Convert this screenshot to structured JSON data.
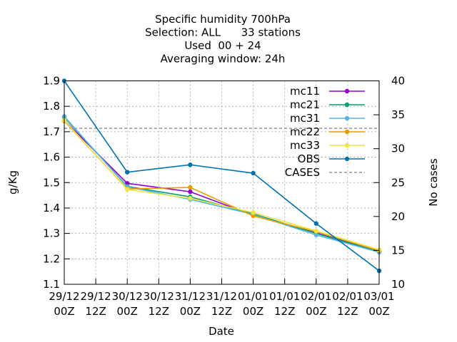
{
  "chart_data": {
    "type": "line",
    "title_lines": [
      "Specific humidity 700hPa",
      "Selection: ALL      33 stations",
      "Used  00 + 24",
      "Averaging window: 24h"
    ],
    "xlabel": "Date",
    "ylabel": "g/Kg",
    "y2label": "No cases",
    "x_ticks": [
      {
        "top": "29/12",
        "bottom": "00Z"
      },
      {
        "top": "29/12",
        "bottom": "12Z"
      },
      {
        "top": "30/12",
        "bottom": "00Z"
      },
      {
        "top": "30/12",
        "bottom": "12Z"
      },
      {
        "top": "31/12",
        "bottom": "00Z"
      },
      {
        "top": "31/12",
        "bottom": "12Z"
      },
      {
        "top": "01/01",
        "bottom": "00Z"
      },
      {
        "top": "01/01",
        "bottom": "12Z"
      },
      {
        "top": "02/01",
        "bottom": "00Z"
      },
      {
        "top": "02/01",
        "bottom": "12Z"
      },
      {
        "top": "03/01",
        "bottom": "00Z"
      }
    ],
    "y_ticks": [
      "1.1",
      "1.2",
      "1.3",
      "1.4",
      "1.5",
      "1.6",
      "1.7",
      "1.8",
      "1.9"
    ],
    "y2_ticks": [
      "10",
      "15",
      "20",
      "25",
      "30",
      "35",
      "40"
    ],
    "ylim": [
      1.1,
      1.9
    ],
    "y2lim": [
      10,
      40
    ],
    "x_points": [
      0,
      2,
      4,
      6,
      8,
      10
    ],
    "grid": true,
    "legend_position": "top-right",
    "series": [
      {
        "name": "mc11",
        "color": "#9400d3",
        "marker": "filled-circle",
        "axis": "y",
        "values": [
          1.745,
          1.497,
          1.464,
          1.371,
          1.302,
          1.23
        ]
      },
      {
        "name": "mc21",
        "color": "#009e73",
        "marker": "filled-circle",
        "axis": "y",
        "values": [
          1.757,
          1.485,
          1.444,
          1.377,
          1.3,
          1.228
        ]
      },
      {
        "name": "mc31",
        "color": "#56b4e9",
        "marker": "filled-circle",
        "axis": "y",
        "values": [
          1.76,
          1.483,
          1.434,
          1.375,
          1.294,
          1.226
        ]
      },
      {
        "name": "mc22",
        "color": "#e69f00",
        "marker": "filled-circle",
        "axis": "y",
        "values": [
          1.742,
          1.475,
          1.481,
          1.369,
          1.307,
          1.232
        ]
      },
      {
        "name": "mc33",
        "color": "#f0e442",
        "marker": "filled-circle",
        "axis": "y",
        "values": [
          1.745,
          1.473,
          1.438,
          1.382,
          1.31,
          1.236
        ]
      },
      {
        "name": "OBS",
        "color": "#0072b2",
        "marker": "filled-circle",
        "axis": "y",
        "values": [
          1.9,
          1.541,
          1.57,
          1.537,
          1.339,
          1.153
        ]
      },
      {
        "name": "CASES",
        "color": "#808080",
        "marker": "none",
        "dashed": true,
        "axis": "y2",
        "values": [
          33,
          33,
          33,
          33,
          33,
          33
        ]
      }
    ]
  }
}
